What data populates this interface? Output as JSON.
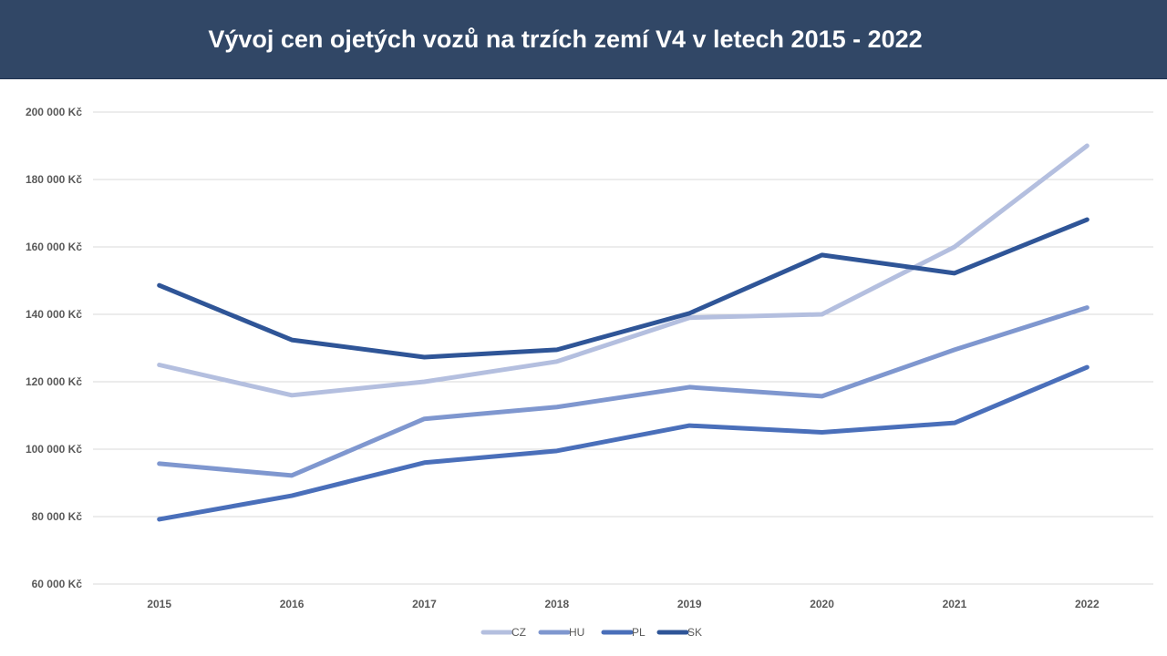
{
  "chart_data": {
    "type": "line",
    "title": "Vývoj cen ojetých vozů na trzích zemí V4 v letech 2015 - 2022",
    "xlabel": "",
    "ylabel": "",
    "categories": [
      "2015",
      "2016",
      "2017",
      "2018",
      "2019",
      "2020",
      "2021",
      "2022"
    ],
    "ylim": [
      60000,
      200000
    ],
    "yticks": [
      60000,
      80000,
      100000,
      120000,
      140000,
      160000,
      180000,
      200000
    ],
    "ytick_labels": [
      "60 000 Kč",
      "80 000 Kč",
      "100 000 Kč",
      "120 000 Kč",
      "140 000 Kč",
      "160 000 Kč",
      "180 000 Kč",
      "200 000 Kč"
    ],
    "grid": true,
    "legend": "bottom",
    "series": [
      {
        "name": "CZ",
        "color": "#b4bfdf",
        "values": [
          125000,
          116000,
          120000,
          126000,
          139000,
          140000,
          160000,
          190000
        ]
      },
      {
        "name": "HU",
        "color": "#7f97cf",
        "values": [
          95700,
          92200,
          109000,
          112500,
          118400,
          115700,
          129500,
          142000
        ]
      },
      {
        "name": "PL",
        "color": "#4a6fba",
        "values": [
          79200,
          86200,
          96000,
          99500,
          107000,
          105000,
          107800,
          124300
        ]
      },
      {
        "name": "SK",
        "color": "#2f5597",
        "values": [
          148600,
          132400,
          127300,
          129500,
          140300,
          157600,
          152200,
          168100
        ]
      }
    ]
  }
}
